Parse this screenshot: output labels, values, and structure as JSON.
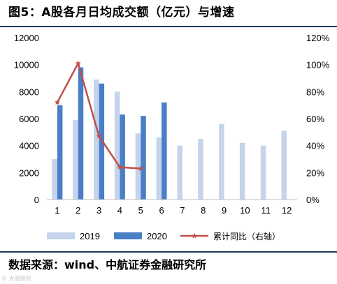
{
  "figure": {
    "title": "图5：A股各月日均成交额（亿元）与增速",
    "source": "数据来源：wind、中航证券金融研究所",
    "watermark": "© 大成研究"
  },
  "chart_data": {
    "type": "bar",
    "categories": [
      "1",
      "2",
      "3",
      "4",
      "5",
      "6",
      "7",
      "8",
      "9",
      "10",
      "11",
      "12"
    ],
    "series": [
      {
        "name": "2019",
        "type": "bar",
        "axis": "left",
        "color": "#c5d3ec",
        "values": [
          3000,
          5900,
          8900,
          8000,
          4900,
          4600,
          4000,
          4500,
          5600,
          4200,
          4000,
          5100
        ]
      },
      {
        "name": "2020",
        "type": "bar",
        "axis": "left",
        "color": "#4a7ec7",
        "values": [
          7000,
          9800,
          8600,
          6300,
          6200,
          7200,
          null,
          null,
          null,
          null,
          null,
          null
        ]
      },
      {
        "name": "累计同比（右轴）",
        "type": "line",
        "axis": "right",
        "color": "#c0504d",
        "values": [
          0.72,
          1.01,
          0.47,
          0.24,
          0.23,
          null,
          null,
          null,
          null,
          null,
          null,
          null
        ]
      }
    ],
    "yleft": {
      "min": 0,
      "max": 12000,
      "ticks": [
        "0",
        "2000",
        "4000",
        "6000",
        "8000",
        "10000",
        "12000"
      ]
    },
    "yright": {
      "min": 0,
      "max": 1.2,
      "ticks": [
        "0%",
        "20%",
        "40%",
        "60%",
        "80%",
        "100%",
        "120%"
      ]
    },
    "grid": false,
    "legend_position": "bottom"
  }
}
